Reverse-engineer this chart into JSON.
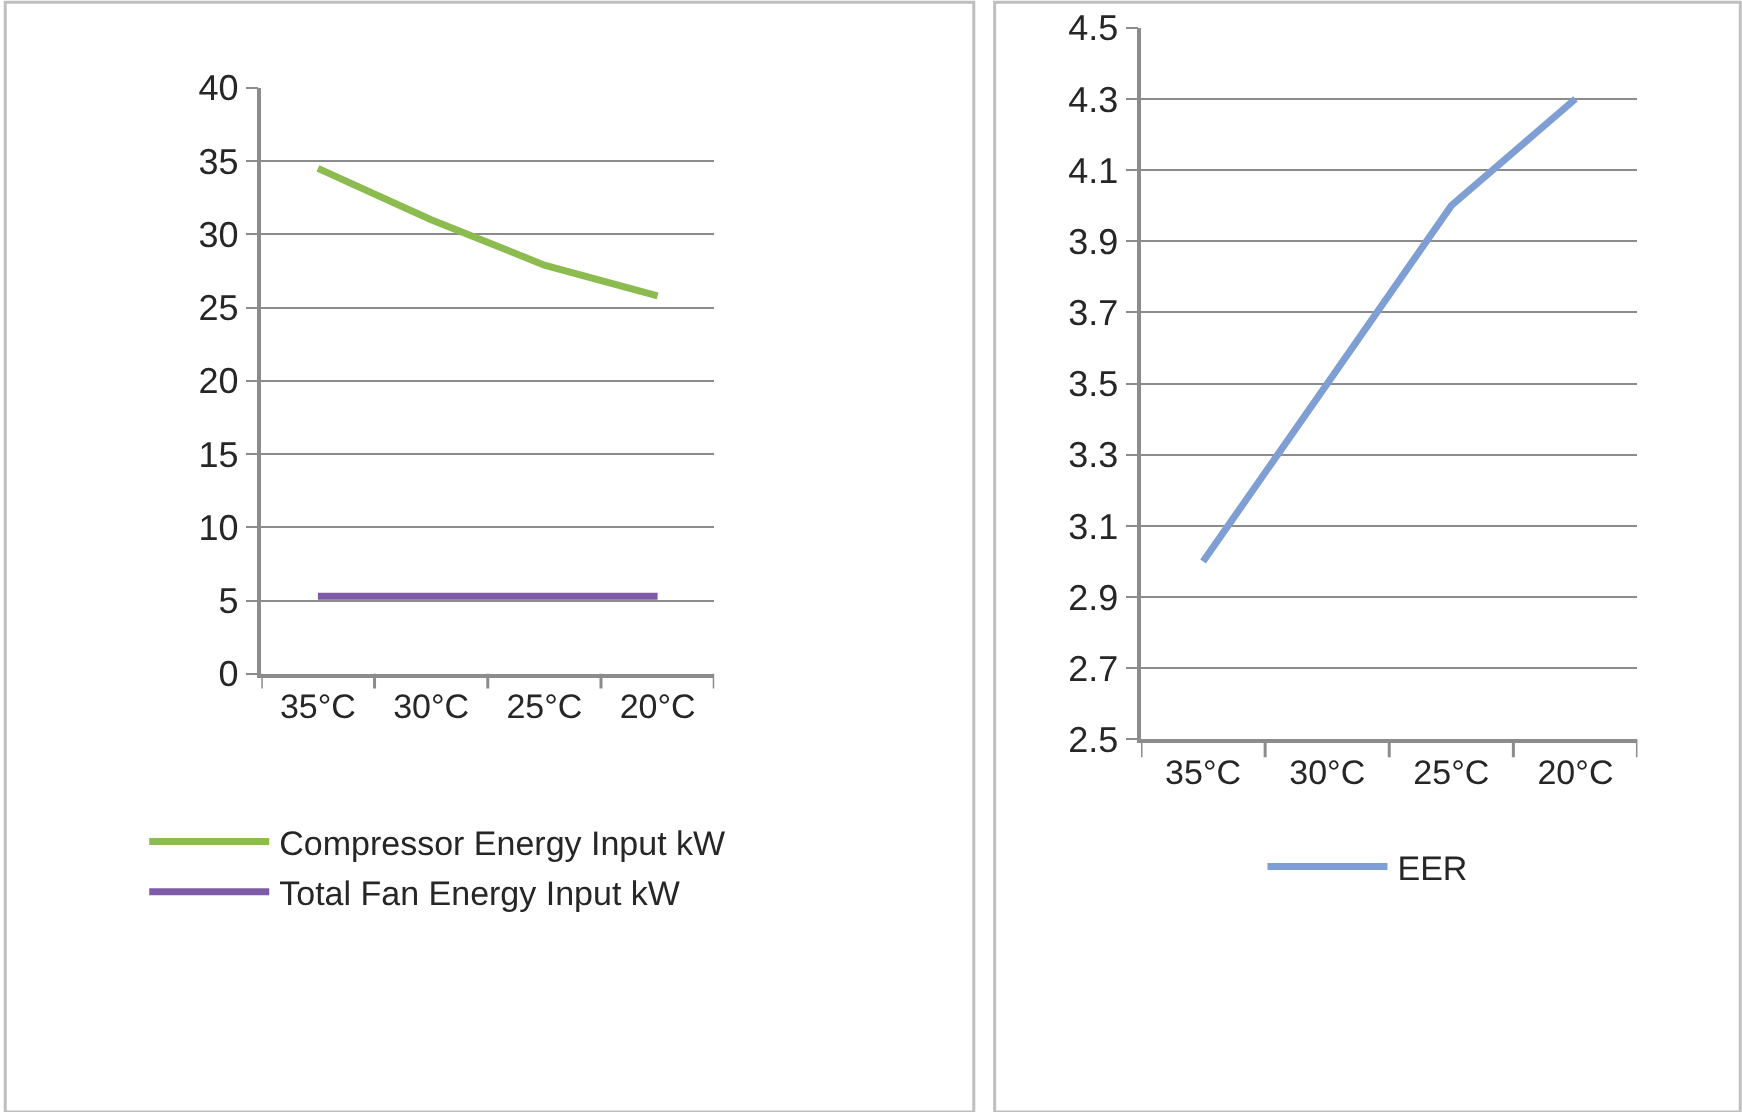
{
  "chart_data": [
    {
      "type": "line",
      "categories": [
        "35°C",
        "30°C",
        "25°C",
        "20°C"
      ],
      "ylim": [
        0,
        40
      ],
      "yticks": [
        0,
        5,
        10,
        15,
        20,
        25,
        30,
        35,
        40
      ],
      "grid": "y",
      "legend": "bottom",
      "marker": "none",
      "line_style": "solid",
      "series": [
        {
          "name": "Compressor Energy Input kW",
          "color": "#8cbb4f",
          "values": [
            34.5,
            31.0,
            27.9,
            25.8
          ]
        },
        {
          "name": "Total Fan Energy Input kW",
          "color": "#7d5ba6",
          "values": [
            5.3,
            5.3,
            5.3,
            5.3
          ]
        }
      ]
    },
    {
      "type": "line",
      "categories": [
        "35°C",
        "30°C",
        "25°C",
        "20°C"
      ],
      "ylim": [
        2.5,
        4.5
      ],
      "yticks": [
        2.5,
        2.7,
        2.9,
        3.1,
        3.3,
        3.5,
        3.7,
        3.9,
        4.1,
        4.3,
        4.5
      ],
      "grid": "y",
      "legend": "bottom",
      "marker": "none",
      "line_style": "solid",
      "series": [
        {
          "name": "EER",
          "color": "#7f9fd4",
          "values": [
            3.0,
            3.5,
            4.0,
            4.3
          ]
        }
      ]
    }
  ]
}
